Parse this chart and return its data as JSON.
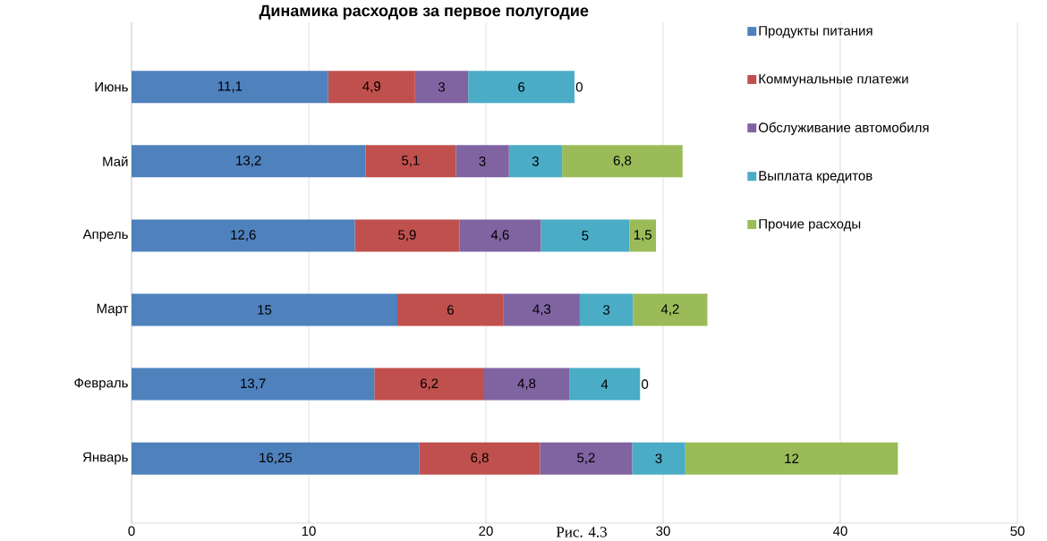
{
  "chart_data": {
    "type": "bar",
    "orientation": "horizontal",
    "stacked": true,
    "title": "Динамика расходов за первое полугодие",
    "categories": [
      "Июнь",
      "Май",
      "Апрель",
      "Март",
      "Февраль",
      "Январь"
    ],
    "series": [
      {
        "name": "Продукты питания",
        "color": "#4f81bd",
        "values": [
          11.1,
          13.2,
          12.6,
          15,
          13.7,
          16.25
        ],
        "value_labels": [
          "11,1",
          "13,2",
          "12,6",
          "15",
          "13,7",
          "16,25"
        ]
      },
      {
        "name": "Коммунальные платежи",
        "color": "#c0504d",
        "values": [
          4.9,
          5.1,
          5.9,
          6,
          6.2,
          6.8
        ],
        "value_labels": [
          "4,9",
          "5,1",
          "5,9",
          "6",
          "6,2",
          "6,8"
        ]
      },
      {
        "name": "Обслуживание автомобиля",
        "color": "#8064a2",
        "values": [
          3,
          3,
          4.6,
          4.3,
          4.8,
          5.2
        ],
        "value_labels": [
          "3",
          "3",
          "4,6",
          "4,3",
          "4,8",
          "5,2"
        ]
      },
      {
        "name": "Выплата кредитов",
        "color": "#4bacc6",
        "values": [
          6,
          3,
          5,
          3,
          4,
          3
        ],
        "value_labels": [
          "6",
          "3",
          "5",
          "3",
          "4",
          "3"
        ]
      },
      {
        "name": "Прочие расходы",
        "color": "#9bbb59",
        "values": [
          0,
          6.8,
          1.5,
          4.2,
          0,
          12
        ],
        "value_labels": [
          "0",
          "6,8",
          "1,5",
          "4,2",
          "0",
          "12"
        ]
      }
    ],
    "xlim": [
      0,
      50
    ],
    "xticks": [
      0,
      10,
      20,
      30,
      40,
      50
    ],
    "grid": "x",
    "legend": "top right",
    "annotations": [
      "Рис. 4.3"
    ]
  }
}
